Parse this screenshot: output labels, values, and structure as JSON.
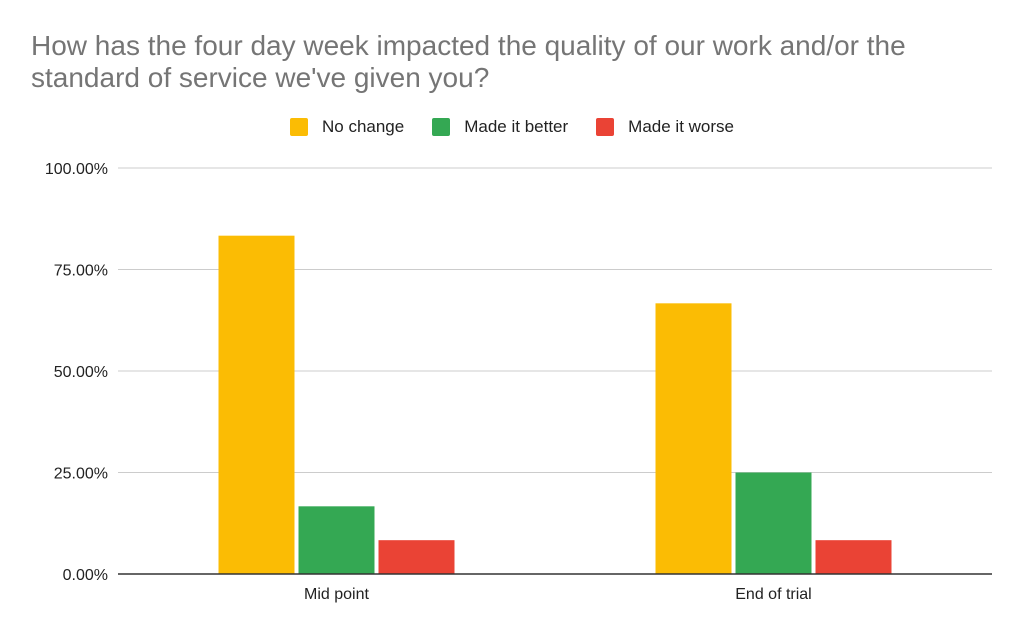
{
  "chart_data": {
    "type": "bar",
    "title": "How has the four day week impacted the quality of our work and/or the standard of service we've given you?",
    "categories": [
      "Mid point",
      "End of trial"
    ],
    "series": [
      {
        "name": "No change",
        "color": "#fbbc04",
        "values": [
          83.33,
          66.67
        ]
      },
      {
        "name": "Made it better",
        "color": "#34a853",
        "values": [
          16.67,
          25.0
        ]
      },
      {
        "name": "Made it worse",
        "color": "#ea4335",
        "values": [
          8.33,
          8.33
        ]
      }
    ],
    "ylim": [
      0,
      100
    ],
    "yticks": [
      {
        "value": 0,
        "label": "0.00%"
      },
      {
        "value": 25,
        "label": "25.00%"
      },
      {
        "value": 50,
        "label": "50.00%"
      },
      {
        "value": 75,
        "label": "75.00%"
      },
      {
        "value": 100,
        "label": "100.00%"
      }
    ],
    "legend_position": "top",
    "grid": true,
    "xlabel": "",
    "ylabel": ""
  }
}
